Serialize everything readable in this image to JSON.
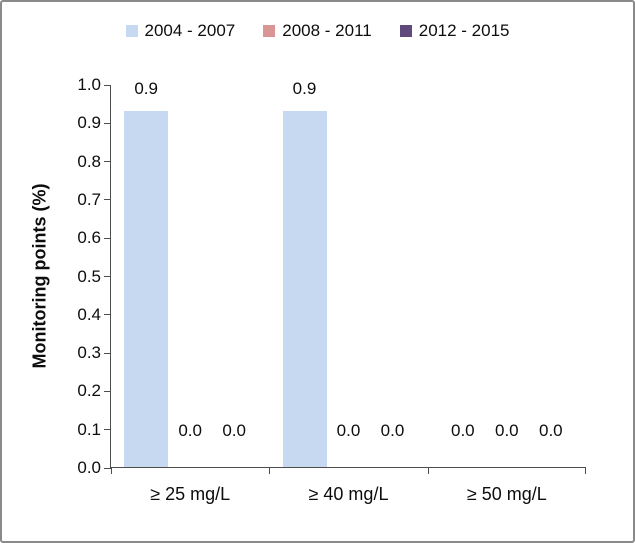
{
  "chart_data": {
    "type": "bar",
    "ylabel": "Monitoring points (%)",
    "categories": [
      "≥ 25 mg/L",
      "≥ 40 mg/L",
      "≥ 50 mg/L"
    ],
    "series": [
      {
        "name": "2004 - 2007",
        "color": "#c6d9f0",
        "values": [
          0.93,
          0.93,
          0.0
        ],
        "labels": [
          "0.9",
          "0.9",
          "0.0"
        ]
      },
      {
        "name": "2008 - 2011",
        "color": "#d99694",
        "values": [
          0.0,
          0.0,
          0.0
        ],
        "labels": [
          "0.0",
          "0.0",
          "0.0"
        ]
      },
      {
        "name": "2012 - 2015",
        "color": "#604a7b",
        "values": [
          0.0,
          0.0,
          0.0
        ],
        "labels": [
          "0.0",
          "0.0",
          "0.0"
        ]
      }
    ],
    "ylim": [
      0.0,
      1.0
    ],
    "ytick_labels": [
      "0.0",
      "0.1",
      "0.2",
      "0.3",
      "0.4",
      "0.5",
      "0.6",
      "0.7",
      "0.8",
      "0.9",
      "1.0"
    ],
    "grid": false,
    "legend_position": "top",
    "colors": {
      "axis": "#4d4d4d",
      "text": "#0d0d0d",
      "frame_border": "#8a8a8a"
    }
  }
}
